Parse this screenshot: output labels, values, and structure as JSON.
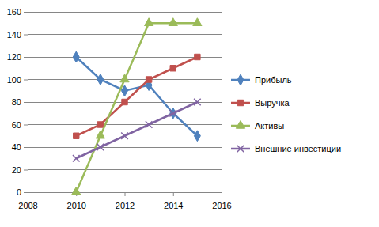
{
  "chart_data": {
    "type": "line",
    "x": [
      2010,
      2011,
      2012,
      2013,
      2014,
      2015
    ],
    "series": [
      {
        "name": "Прибыль",
        "color": "#4f81bd",
        "marker": "diamond",
        "values": [
          120,
          100,
          90,
          95,
          70,
          50
        ]
      },
      {
        "name": "Выручка",
        "color": "#c0504d",
        "marker": "square",
        "values": [
          50,
          60,
          80,
          100,
          110,
          120
        ]
      },
      {
        "name": "Активы",
        "color": "#9bbb59",
        "marker": "triangle",
        "values": [
          0,
          50,
          100,
          150,
          150,
          150
        ]
      },
      {
        "name": "Внешние инвестиции",
        "color": "#8064a2",
        "marker": "x",
        "values": [
          30,
          40,
          50,
          60,
          70,
          80
        ]
      }
    ],
    "xlim": [
      2008,
      2016
    ],
    "xticks": [
      2008,
      2010,
      2012,
      2014,
      2016
    ],
    "ylim": [
      0,
      160
    ],
    "yticks": [
      0,
      20,
      40,
      60,
      80,
      100,
      120,
      140,
      160
    ],
    "grid": true,
    "legend": "right"
  }
}
